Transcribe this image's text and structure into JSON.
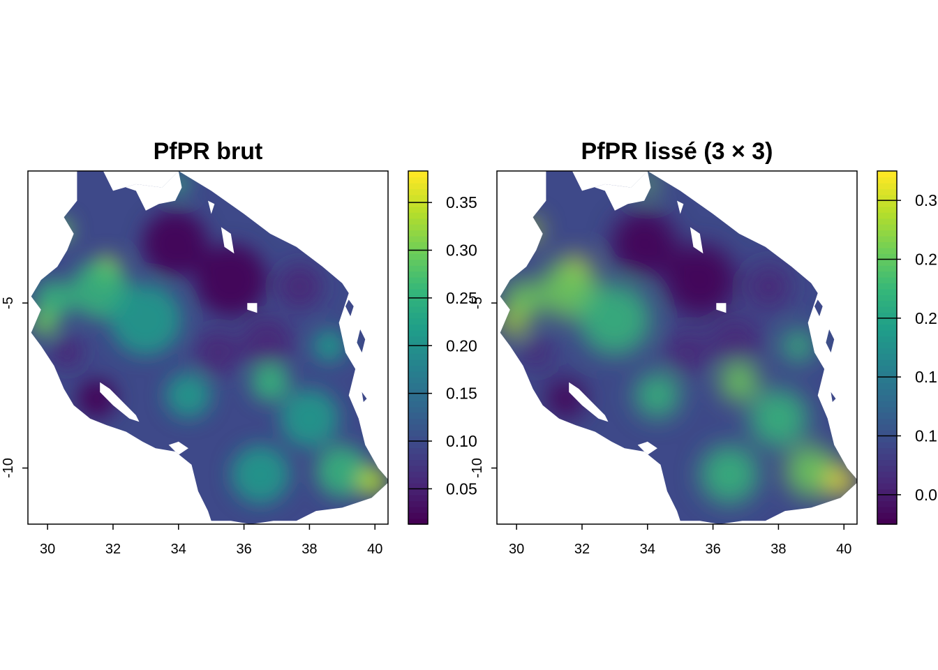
{
  "colors": {
    "palette": "viridis",
    "scale": [
      "#440154",
      "#482878",
      "#3e4989",
      "#31688e",
      "#26828e",
      "#1f9e89",
      "#35b779",
      "#6ece58",
      "#b5de2b",
      "#fde725"
    ],
    "background": "#ffffff",
    "axis": "#000000"
  },
  "chart_data": [
    {
      "type": "heatmap",
      "title": "PfPR brut",
      "x_ticks": [
        "30",
        "32",
        "34",
        "36",
        "38",
        "40"
      ],
      "y_ticks": [
        "-5",
        "-10"
      ],
      "xlim": [
        29.4,
        40.4
      ],
      "ylim": [
        -11.7,
        -1.0
      ],
      "legend": {
        "position": "right",
        "range": [
          0.013,
          0.383
        ],
        "ticks": [
          "0.05",
          "0.10",
          "0.15",
          "0.20",
          "0.25",
          "0.30",
          "0.35"
        ]
      }
    },
    {
      "type": "heatmap",
      "title": "PfPR lissé (3 × 3)",
      "x_ticks": [
        "30",
        "32",
        "34",
        "36",
        "38",
        "40"
      ],
      "y_ticks": [
        "-5",
        "-10"
      ],
      "xlim": [
        29.4,
        40.4
      ],
      "ylim": [
        -11.7,
        -1.0
      ],
      "legend": {
        "position": "right",
        "range": [
          0.02,
          0.33
        ],
        "ticks": [
          "0.0",
          "0.1",
          "0.1",
          "0.2",
          "0.2",
          "0.3"
        ]
      }
    }
  ]
}
